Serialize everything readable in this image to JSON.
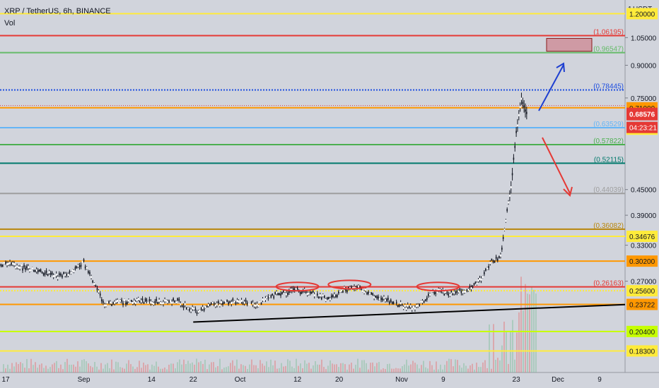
{
  "header": {
    "symbol": "XRP / TetherUS, 6h, BINANCE",
    "volume_label": "Vol",
    "currency": "USDT"
  },
  "chart_data": {
    "type": "candlestick",
    "symbol": "XRP/USDT",
    "interval": "6h",
    "exchange": "BINANCE",
    "y_scale": "log",
    "ylim": [
      0.1623,
      1.295
    ],
    "last_price": "0.68576",
    "countdown": "04:23:21",
    "price_axis_ticks": [
      "1.05000",
      "0.90000",
      "0.75000",
      "0.45000",
      "0.39000",
      "0.33000",
      "0.27000"
    ],
    "x_ticks": [
      {
        "label": "17",
        "date": "2020-08-17"
      },
      {
        "label": "Sep",
        "date": "2020-09-01"
      },
      {
        "label": "14",
        "date": "2020-09-14"
      },
      {
        "label": "22",
        "date": "2020-09-22"
      },
      {
        "label": "Oct",
        "date": "2020-10-01"
      },
      {
        "label": "12",
        "date": "2020-10-12"
      },
      {
        "label": "20",
        "date": "2020-10-20"
      },
      {
        "label": "Nov",
        "date": "2020-11-01"
      },
      {
        "label": "9",
        "date": "2020-11-09"
      },
      {
        "label": "23",
        "date": "2020-11-23"
      },
      {
        "label": "Dec",
        "date": "2020-12-01"
      },
      {
        "label": "9",
        "date": "2020-12-09"
      }
    ],
    "horizontal_levels": [
      {
        "label": "1.20000",
        "value": 1.2,
        "color": "#ffeb3b",
        "style": "solid",
        "box": true
      },
      {
        "label": "1.06195",
        "value": 1.06195,
        "color": "#e53935",
        "style": "solid",
        "box": false
      },
      {
        "label": "0.96547",
        "value": 0.96547,
        "color": "#66bb6a",
        "style": "solid",
        "box": false
      },
      {
        "label": "0.78445",
        "value": 0.78445,
        "color": "#1e4ee0",
        "style": "dotted",
        "box": false
      },
      {
        "label": "0.71000",
        "value": 0.71,
        "color": "#ff9800",
        "style": "solid",
        "box": true
      },
      {
        "label": "0.63529",
        "value": 0.63529,
        "color": "#64b5f6",
        "style": "solid",
        "box": false
      },
      {
        "label": "0.57822",
        "value": 0.57822,
        "color": "#4caf50",
        "style": "solid",
        "box": false
      },
      {
        "label": "0.63000",
        "value": 0.63,
        "color": "#ffeb3b",
        "style": "none",
        "box": true
      },
      {
        "label": "0.52115",
        "value": 0.52115,
        "color": "#00796b",
        "style": "solid",
        "box": false
      },
      {
        "label": "0.44039",
        "value": 0.44039,
        "color": "#9e9e9e",
        "style": "solid",
        "box": false
      },
      {
        "label": "0.36082",
        "value": 0.36082,
        "color": "#b8860b",
        "style": "solid",
        "box": false
      },
      {
        "label": "0.34676",
        "value": 0.34676,
        "color": "#ffeb3b",
        "style": "solid",
        "box": true
      },
      {
        "label": "0.30200",
        "value": 0.302,
        "color": "#ff9800",
        "style": "solid",
        "box": true
      },
      {
        "label": "0.26163",
        "value": 0.26163,
        "color": "#e53935",
        "style": "solid",
        "box": false
      },
      {
        "label": "0.25600",
        "value": 0.256,
        "color": "#ffeb3b",
        "style": "dotted",
        "box": true
      },
      {
        "label": "0.23722",
        "value": 0.23722,
        "color": "#ff9800",
        "style": "solid",
        "box": true
      },
      {
        "label": "0.20400",
        "value": 0.204,
        "color": "#c6ff00",
        "style": "solid",
        "box": true
      },
      {
        "label": "0.18300",
        "value": 0.183,
        "color": "#ffeb3b",
        "style": "solid",
        "box": true
      }
    ],
    "price_path": [
      [
        "2020-08-15",
        0.29
      ],
      [
        "2020-08-17",
        0.298
      ],
      [
        "2020-08-20",
        0.292
      ],
      [
        "2020-08-24",
        0.284
      ],
      [
        "2020-08-27",
        0.278
      ],
      [
        "2020-08-29",
        0.282
      ],
      [
        "2020-09-01",
        0.3
      ],
      [
        "2020-09-03",
        0.265
      ],
      [
        "2020-09-05",
        0.238
      ],
      [
        "2020-09-08",
        0.24
      ],
      [
        "2020-09-12",
        0.242
      ],
      [
        "2020-09-16",
        0.24
      ],
      [
        "2020-09-19",
        0.242
      ],
      [
        "2020-09-21",
        0.232
      ],
      [
        "2020-09-23",
        0.228
      ],
      [
        "2020-09-26",
        0.238
      ],
      [
        "2020-10-01",
        0.242
      ],
      [
        "2020-10-04",
        0.236
      ],
      [
        "2020-10-08",
        0.252
      ],
      [
        "2020-10-12",
        0.256
      ],
      [
        "2020-10-15",
        0.252
      ],
      [
        "2020-10-18",
        0.244
      ],
      [
        "2020-10-21",
        0.258
      ],
      [
        "2020-10-24",
        0.26
      ],
      [
        "2020-10-27",
        0.248
      ],
      [
        "2020-10-31",
        0.238
      ],
      [
        "2020-11-03",
        0.232
      ],
      [
        "2020-11-05",
        0.24
      ],
      [
        "2020-11-07",
        0.256
      ],
      [
        "2020-11-10",
        0.252
      ],
      [
        "2020-11-13",
        0.256
      ],
      [
        "2020-11-16",
        0.27
      ],
      [
        "2020-11-18",
        0.3
      ],
      [
        "2020-11-20",
        0.31
      ],
      [
        "2020-11-21",
        0.38
      ],
      [
        "2020-11-22",
        0.46
      ],
      [
        "2020-11-23",
        0.62
      ],
      [
        "2020-11-24",
        0.74
      ],
      [
        "2020-11-25",
        0.69
      ],
      [
        "2020-11-25",
        0.68576
      ]
    ],
    "annotations": [
      {
        "type": "target_zone",
        "y0": 0.96547,
        "y1": 1.06195
      },
      {
        "type": "arrow",
        "direction": "up",
        "color": "#1e3fd0"
      },
      {
        "type": "arrow",
        "direction": "down",
        "color": "#e53935"
      },
      {
        "type": "trendline",
        "from": [
          "2020-09-22",
          0.215
        ],
        "to": [
          "2020-12-10",
          0.237
        ],
        "color": "#000000"
      },
      {
        "type": "ellipse",
        "date": "2020-10-12",
        "value": 0.262
      },
      {
        "type": "ellipse",
        "date": "2020-10-22",
        "value": 0.265
      },
      {
        "type": "ellipse",
        "date": "2020-11-08",
        "value": 0.262
      }
    ]
  }
}
